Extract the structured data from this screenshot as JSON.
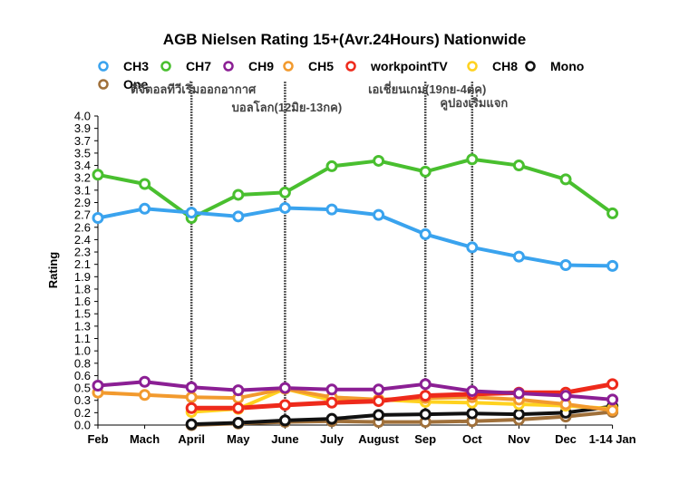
{
  "chart_data": {
    "type": "line",
    "title": "AGB Nielsen Rating 15+(Avr.24Hours) Nationwide",
    "ylabel": "Rating",
    "xlabel": "",
    "ylim": [
      0,
      4.0
    ],
    "yticks": [
      "0.0",
      "0.2",
      "0.3",
      "0.5",
      "0.6",
      "0.8",
      "1.0",
      "1.1",
      "1.3",
      "1.5",
      "1.6",
      "1.8",
      "1.9",
      "2.1",
      "2.3",
      "2.4",
      "2.6",
      "2.7",
      "2.9",
      "3.1",
      "3.2",
      "3.4",
      "3.5",
      "3.7",
      "3.9",
      "4.0"
    ],
    "categories": [
      "Feb",
      "Mach",
      "April",
      "May",
      "June",
      "July",
      "August",
      "Sep",
      "Oct",
      "Nov",
      "Dec",
      "1-14 Jan"
    ],
    "grid": false,
    "legend_position": "top",
    "series": [
      {
        "name": "CH3",
        "color": "#3aa3ee",
        "values": [
          2.68,
          2.8,
          2.75,
          2.7,
          2.81,
          2.79,
          2.72,
          2.47,
          2.3,
          2.18,
          2.07,
          2.06
        ]
      },
      {
        "name": "CH7",
        "color": "#49bf2f",
        "values": [
          3.24,
          3.12,
          2.68,
          2.98,
          3.01,
          3.35,
          3.42,
          3.28,
          3.44,
          3.36,
          3.18,
          2.74
        ]
      },
      {
        "name": "CH9",
        "color": "#8b1f94",
        "values": [
          0.51,
          0.56,
          0.49,
          0.45,
          0.48,
          0.46,
          0.46,
          0.53,
          0.44,
          0.41,
          0.38,
          0.33
        ]
      },
      {
        "name": "CH5",
        "color": "#f29a2e",
        "values": [
          0.42,
          0.39,
          0.36,
          0.35,
          0.47,
          0.36,
          0.33,
          0.35,
          0.36,
          0.33,
          0.27,
          0.19
        ]
      },
      {
        "name": "workpointTV",
        "color": "#ee2a1b",
        "values": [
          null,
          null,
          0.22,
          0.22,
          0.26,
          0.29,
          0.31,
          0.38,
          0.4,
          0.42,
          0.42,
          0.53
        ]
      },
      {
        "name": "CH8",
        "color": "#ffd21f",
        "values": [
          null,
          null,
          0.17,
          0.21,
          0.47,
          0.32,
          0.33,
          0.3,
          0.29,
          0.27,
          0.25,
          0.21
        ]
      },
      {
        "name": "Mono",
        "color": "#111111",
        "values": [
          null,
          null,
          0.01,
          0.03,
          0.06,
          0.08,
          0.13,
          0.14,
          0.15,
          0.14,
          0.16,
          0.24
        ]
      },
      {
        "name": "One",
        "color": "#a0703a",
        "values": [
          null,
          null,
          0.0,
          0.02,
          0.04,
          0.05,
          0.04,
          0.04,
          0.05,
          0.07,
          0.11,
          0.17
        ]
      }
    ],
    "annotations": [
      {
        "category": "April",
        "text": "ดิจิตอลทีวีเริ่มออกอากาศ"
      },
      {
        "category": "June",
        "text": "บอลโลก(12มิย-13กค)"
      },
      {
        "category": "Sep",
        "text": "เอเชี่ยนเกม(19กย-4ตค)"
      },
      {
        "category": "Oct",
        "text": "คูปองเริ่มแจก"
      }
    ]
  }
}
